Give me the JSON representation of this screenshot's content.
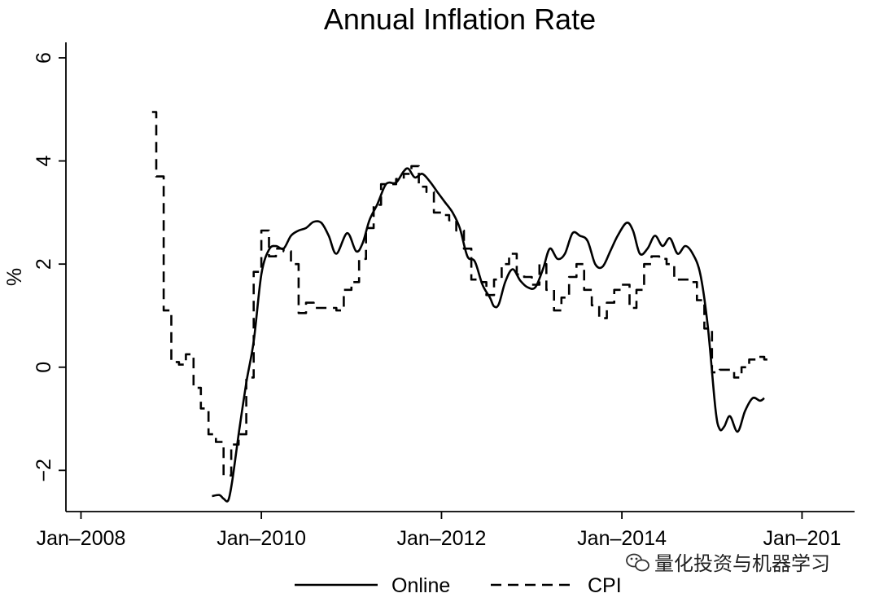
{
  "chart_data": {
    "type": "line",
    "title": "Annual Inflation Rate",
    "ylabel": "%",
    "xlabel": "",
    "xlim": [
      "2007-11-01",
      "2016-08-01"
    ],
    "ylim": [
      -2.8,
      6.3
    ],
    "x_ticks": [
      {
        "label": "Jan–2008",
        "date": "2008-01-01"
      },
      {
        "label": "Jan–2010",
        "date": "2010-01-01"
      },
      {
        "label": "Jan–2012",
        "date": "2012-01-01"
      },
      {
        "label": "Jan–2014",
        "date": "2014-01-01"
      },
      {
        "label": "Jan–201",
        "date": "2016-01-01"
      }
    ],
    "y_ticks": [
      {
        "label": "6",
        "value": 6
      },
      {
        "label": "4",
        "value": 4
      },
      {
        "label": "2",
        "value": 2
      },
      {
        "label": "0",
        "value": 0
      },
      {
        "label": "−2",
        "value": -2
      }
    ],
    "grid": false,
    "legend": "bottom",
    "series": [
      {
        "name": "Online",
        "style": "solid",
        "points": [
          [
            "2009-06-15",
            -2.5
          ],
          [
            "2009-07-15",
            -2.48
          ],
          [
            "2009-08-01",
            -2.55
          ],
          [
            "2009-08-20",
            -2.58
          ],
          [
            "2009-09-05",
            -2.2
          ],
          [
            "2009-10-01",
            -1.3
          ],
          [
            "2009-11-01",
            -0.3
          ],
          [
            "2009-12-01",
            0.5
          ],
          [
            "2010-01-01",
            1.8
          ],
          [
            "2010-02-01",
            2.28
          ],
          [
            "2010-03-01",
            2.35
          ],
          [
            "2010-04-01",
            2.3
          ],
          [
            "2010-05-01",
            2.55
          ],
          [
            "2010-06-01",
            2.65
          ],
          [
            "2010-07-01",
            2.7
          ],
          [
            "2010-08-01",
            2.82
          ],
          [
            "2010-09-01",
            2.8
          ],
          [
            "2010-10-01",
            2.55
          ],
          [
            "2010-11-01",
            2.2
          ],
          [
            "2010-12-15",
            2.6
          ],
          [
            "2011-01-20",
            2.25
          ],
          [
            "2011-02-15",
            2.4
          ],
          [
            "2011-03-15",
            2.85
          ],
          [
            "2011-04-15",
            3.15
          ],
          [
            "2011-05-15",
            3.5
          ],
          [
            "2011-06-01",
            3.58
          ],
          [
            "2011-07-01",
            3.58
          ],
          [
            "2011-08-01",
            3.8
          ],
          [
            "2011-08-20",
            3.85
          ],
          [
            "2011-09-15",
            3.68
          ],
          [
            "2011-10-15",
            3.75
          ],
          [
            "2011-11-15",
            3.6
          ],
          [
            "2011-12-15",
            3.4
          ],
          [
            "2012-01-15",
            3.2
          ],
          [
            "2012-02-15",
            3.0
          ],
          [
            "2012-03-15",
            2.7
          ],
          [
            "2012-04-15",
            2.15
          ],
          [
            "2012-05-15",
            2.05
          ],
          [
            "2012-06-15",
            1.6
          ],
          [
            "2012-07-15",
            1.35
          ],
          [
            "2012-08-01",
            1.18
          ],
          [
            "2012-08-20",
            1.22
          ],
          [
            "2012-09-15",
            1.65
          ],
          [
            "2012-10-15",
            1.9
          ],
          [
            "2012-11-15",
            1.68
          ],
          [
            "2012-12-15",
            1.55
          ],
          [
            "2013-01-15",
            1.55
          ],
          [
            "2013-02-15",
            1.9
          ],
          [
            "2013-03-15",
            2.3
          ],
          [
            "2013-04-15",
            2.1
          ],
          [
            "2013-05-15",
            2.2
          ],
          [
            "2013-06-15",
            2.6
          ],
          [
            "2013-07-15",
            2.55
          ],
          [
            "2013-08-15",
            2.45
          ],
          [
            "2013-09-15",
            2.0
          ],
          [
            "2013-10-15",
            1.95
          ],
          [
            "2013-11-15",
            2.25
          ],
          [
            "2013-12-15",
            2.55
          ],
          [
            "2014-01-20",
            2.8
          ],
          [
            "2014-02-15",
            2.65
          ],
          [
            "2014-03-15",
            2.2
          ],
          [
            "2014-04-15",
            2.3
          ],
          [
            "2014-05-15",
            2.55
          ],
          [
            "2014-06-15",
            2.35
          ],
          [
            "2014-07-15",
            2.5
          ],
          [
            "2014-08-15",
            2.2
          ],
          [
            "2014-09-15",
            2.35
          ],
          [
            "2014-10-15",
            2.2
          ],
          [
            "2014-11-15",
            1.8
          ],
          [
            "2014-12-15",
            0.8
          ],
          [
            "2015-01-15",
            -0.8
          ],
          [
            "2015-02-01",
            -1.2
          ],
          [
            "2015-02-20",
            -1.15
          ],
          [
            "2015-03-15",
            -0.95
          ],
          [
            "2015-04-15",
            -1.25
          ],
          [
            "2015-05-15",
            -0.85
          ],
          [
            "2015-06-15",
            -0.6
          ],
          [
            "2015-07-15",
            -0.65
          ],
          [
            "2015-08-01",
            -0.6
          ]
        ]
      },
      {
        "name": "CPI",
        "style": "dashed",
        "points": [
          [
            "2008-10-15",
            4.95
          ],
          [
            "2008-11-01",
            3.7
          ],
          [
            "2008-12-01",
            1.1
          ],
          [
            "2009-01-01",
            0.1
          ],
          [
            "2009-02-01",
            0.05
          ],
          [
            "2009-03-01",
            0.25
          ],
          [
            "2009-04-01",
            -0.4
          ],
          [
            "2009-05-01",
            -0.8
          ],
          [
            "2009-06-01",
            -1.3
          ],
          [
            "2009-07-01",
            -1.45
          ],
          [
            "2009-08-01",
            -2.1
          ],
          [
            "2009-09-01",
            -1.5
          ],
          [
            "2009-10-01",
            -1.3
          ],
          [
            "2009-11-01",
            -0.2
          ],
          [
            "2009-12-01",
            1.85
          ],
          [
            "2010-01-01",
            2.65
          ],
          [
            "2010-02-01",
            2.15
          ],
          [
            "2010-03-01",
            2.3
          ],
          [
            "2010-04-01",
            2.25
          ],
          [
            "2010-05-01",
            2.0
          ],
          [
            "2010-06-01",
            1.05
          ],
          [
            "2010-07-01",
            1.25
          ],
          [
            "2010-08-01",
            1.15
          ],
          [
            "2010-09-01",
            1.15
          ],
          [
            "2010-10-01",
            1.15
          ],
          [
            "2010-11-01",
            1.1
          ],
          [
            "2010-12-01",
            1.5
          ],
          [
            "2011-01-01",
            1.65
          ],
          [
            "2011-02-01",
            2.1
          ],
          [
            "2011-03-01",
            2.7
          ],
          [
            "2011-04-01",
            3.15
          ],
          [
            "2011-05-01",
            3.55
          ],
          [
            "2011-06-01",
            3.55
          ],
          [
            "2011-07-01",
            3.65
          ],
          [
            "2011-08-01",
            3.75
          ],
          [
            "2011-09-01",
            3.9
          ],
          [
            "2011-10-01",
            3.5
          ],
          [
            "2011-11-01",
            3.4
          ],
          [
            "2011-12-01",
            3.0
          ],
          [
            "2012-01-01",
            2.95
          ],
          [
            "2012-02-01",
            2.85
          ],
          [
            "2012-03-01",
            2.65
          ],
          [
            "2012-04-01",
            2.3
          ],
          [
            "2012-05-01",
            1.7
          ],
          [
            "2012-06-01",
            1.65
          ],
          [
            "2012-07-01",
            1.4
          ],
          [
            "2012-08-01",
            1.7
          ],
          [
            "2012-09-01",
            2.0
          ],
          [
            "2012-10-01",
            2.2
          ],
          [
            "2012-11-01",
            1.8
          ],
          [
            "2012-12-01",
            1.75
          ],
          [
            "2013-01-01",
            1.6
          ],
          [
            "2013-02-01",
            2.0
          ],
          [
            "2013-03-01",
            1.5
          ],
          [
            "2013-04-01",
            1.1
          ],
          [
            "2013-05-01",
            1.35
          ],
          [
            "2013-06-01",
            1.75
          ],
          [
            "2013-07-01",
            2.0
          ],
          [
            "2013-08-01",
            1.5
          ],
          [
            "2013-09-01",
            1.2
          ],
          [
            "2013-10-01",
            0.95
          ],
          [
            "2013-11-01",
            1.25
          ],
          [
            "2013-12-01",
            1.5
          ],
          [
            "2014-01-01",
            1.6
          ],
          [
            "2014-02-01",
            1.15
          ],
          [
            "2014-03-01",
            1.5
          ],
          [
            "2014-04-01",
            2.0
          ],
          [
            "2014-05-01",
            2.15
          ],
          [
            "2014-06-01",
            2.1
          ],
          [
            "2014-07-01",
            2.0
          ],
          [
            "2014-08-01",
            1.7
          ],
          [
            "2014-09-01",
            1.7
          ],
          [
            "2014-10-01",
            1.65
          ],
          [
            "2014-11-01",
            1.3
          ],
          [
            "2014-12-01",
            0.75
          ],
          [
            "2015-01-01",
            -0.1
          ],
          [
            "2015-02-01",
            -0.05
          ],
          [
            "2015-03-01",
            -0.05
          ],
          [
            "2015-04-01",
            -0.2
          ],
          [
            "2015-05-01",
            0.0
          ],
          [
            "2015-06-01",
            0.15
          ],
          [
            "2015-07-01",
            0.2
          ],
          [
            "2015-08-01",
            0.15
          ]
        ]
      }
    ]
  },
  "watermark": {
    "text": "量化投资与机器学习",
    "icon": "wechat-icon"
  }
}
